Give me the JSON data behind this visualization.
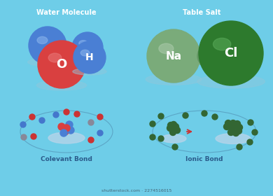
{
  "bg_color": "#6ecde8",
  "title_water": "Water Molecule",
  "title_salt": "Table Salt",
  "label_covalent": "Colevant Bond",
  "label_ionic": "Ionic Bond",
  "watermark": "shutterstock.com · 2274516015",
  "colors": {
    "blue_atom": "#4a7fd4",
    "blue_atom_light": "#8ab4ec",
    "red_atom": "#d94040",
    "red_atom_light": "#e87878",
    "na_atom": "#7aab7a",
    "na_atom_light": "#aacaaa",
    "cl_atom": "#2d7a2d",
    "cl_atom_light": "#5aaa5a",
    "shadow": "#90c8dc",
    "text_white": "#ffffff",
    "text_dark": "#2a5a8a",
    "red_small": "#cc3333",
    "blue_small": "#4477cc",
    "grey_small": "#888899",
    "green_small": "#336633",
    "orbit_color": "#5599bb",
    "base_plate": "#b8d4e8"
  }
}
